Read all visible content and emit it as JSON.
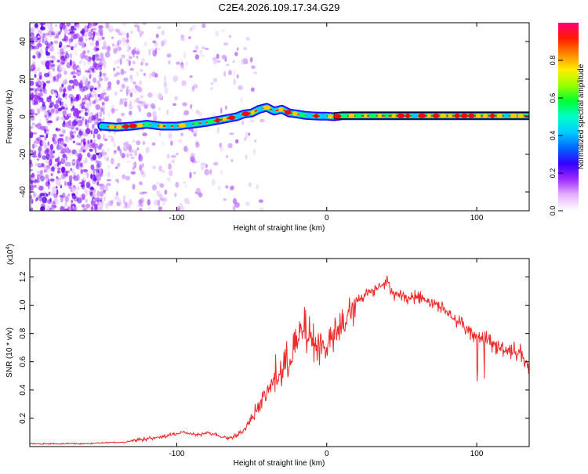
{
  "chart_data": [
    {
      "type": "heatmap",
      "title": "C2E4.2026.109.17.34.G29",
      "xlabel": "Height of straight line (km)",
      "ylabel": "Frequency (Hz)",
      "xlim": [
        -198,
        135
      ],
      "ylim": [
        -50,
        50
      ],
      "x_ticks": [
        -100,
        0,
        100
      ],
      "y_ticks": [
        -40,
        -20,
        0,
        20,
        40
      ],
      "colorbar": {
        "label": "Normalized spectral amplitude",
        "range": [
          0,
          1
        ],
        "ticks": [
          "0.0",
          "0.2",
          "0.4",
          "0.6",
          "0.8"
        ],
        "colors": [
          "#ffffff",
          "#e6b3ff",
          "#9f2bff",
          "#3300ff",
          "#0066ff",
          "#00ccff",
          "#00ffcc",
          "#00ff33",
          "#99ff00",
          "#ffee00",
          "#ff8800",
          "#ff1a00",
          "#ff0077"
        ]
      },
      "ridge": {
        "x": [
          -150,
          -140,
          -130,
          -120,
          -110,
          -100,
          -90,
          -80,
          -70,
          -60,
          -55,
          -50,
          -45,
          -40,
          -35,
          -30,
          -25,
          -20,
          -15,
          -10,
          -5,
          0,
          5,
          10,
          20,
          40,
          60,
          80,
          100,
          110,
          120,
          135
        ],
        "freq_hz": [
          -5,
          -5.5,
          -5,
          -4,
          -5,
          -5,
          -4,
          -3,
          -1.5,
          0,
          1.5,
          2,
          4,
          5,
          3,
          4,
          2,
          1.5,
          0.8,
          0.5,
          0.3,
          0.3,
          0,
          0.5,
          0.5,
          0.5,
          0.5,
          0.5,
          0.5,
          0.5,
          0.5,
          0.5
        ]
      }
    },
    {
      "type": "line",
      "xlabel": "Height of straight line (km)",
      "ylabel": "SNR (10 * v/v)",
      "y_multiplier": "(x10",
      "y_multiplier_exp": "4",
      "y_multiplier_close": ")",
      "xlim": [
        -198,
        135
      ],
      "ylim": [
        0,
        1.33
      ],
      "x_ticks": [
        -100,
        0,
        100
      ],
      "y_ticks": [
        0.2,
        0.4,
        0.6,
        0.8,
        1.0,
        1.2
      ],
      "color": "#ee2a2a",
      "series": [
        {
          "name": "SNR",
          "x": [
            -198,
            -180,
            -160,
            -145,
            -135,
            -125,
            -115,
            -105,
            -95,
            -90,
            -85,
            -80,
            -75,
            -70,
            -65,
            -60,
            -55,
            -50,
            -45,
            -40,
            -35,
            -30,
            -25,
            -20,
            -15,
            -10,
            -5,
            0,
            5,
            10,
            15,
            20,
            25,
            30,
            35,
            40,
            45,
            50,
            55,
            60,
            65,
            70,
            75,
            80,
            85,
            90,
            95,
            100,
            105,
            110,
            115,
            120,
            125,
            130,
            135
          ],
          "values": [
            0.02,
            0.02,
            0.02,
            0.03,
            0.03,
            0.05,
            0.06,
            0.08,
            0.1,
            0.09,
            0.08,
            0.1,
            0.09,
            0.07,
            0.06,
            0.08,
            0.12,
            0.2,
            0.3,
            0.38,
            0.48,
            0.52,
            0.62,
            0.72,
            0.82,
            0.75,
            0.7,
            0.72,
            0.78,
            0.85,
            0.93,
            1.02,
            1.08,
            1.1,
            1.14,
            1.17,
            1.08,
            1.07,
            1.05,
            1.06,
            1.05,
            1.02,
            1.0,
            0.95,
            0.9,
            0.87,
            0.82,
            0.8,
            0.76,
            0.73,
            0.7,
            0.69,
            0.68,
            0.66,
            0.55
          ]
        }
      ]
    }
  ]
}
